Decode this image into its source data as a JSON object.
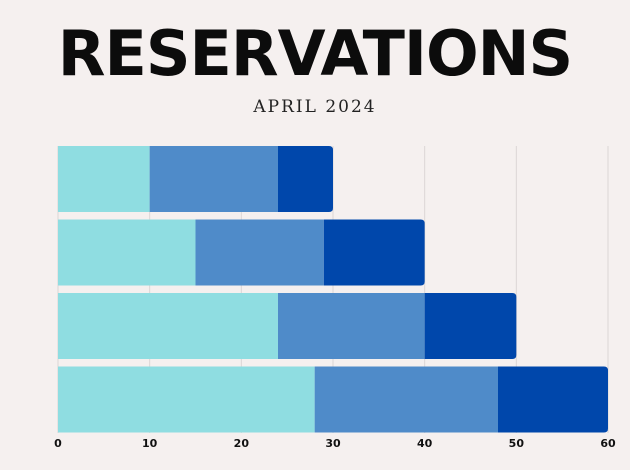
{
  "chart_data": {
    "type": "bar",
    "orientation": "horizontal",
    "stacked": true,
    "title": "RESERVATIONS",
    "subtitle": "APRIL 2024",
    "xlim": [
      0,
      60
    ],
    "x_ticks": [
      "0",
      "10",
      "20",
      "30",
      "40",
      "50",
      "60"
    ],
    "grid": true,
    "categories": [
      "",
      "",
      "",
      ""
    ],
    "series": [
      {
        "values": [
          10,
          15,
          24,
          28
        ]
      },
      {
        "values": [
          14,
          14,
          16,
          20
        ]
      },
      {
        "values": [
          6,
          11,
          10,
          12
        ]
      }
    ]
  },
  "colors": {
    "background": "#f5f0ef",
    "series": [
      "#8fdde1",
      "#4f8bc9",
      "#0047ab"
    ],
    "grid": "#dcd6d5"
  }
}
